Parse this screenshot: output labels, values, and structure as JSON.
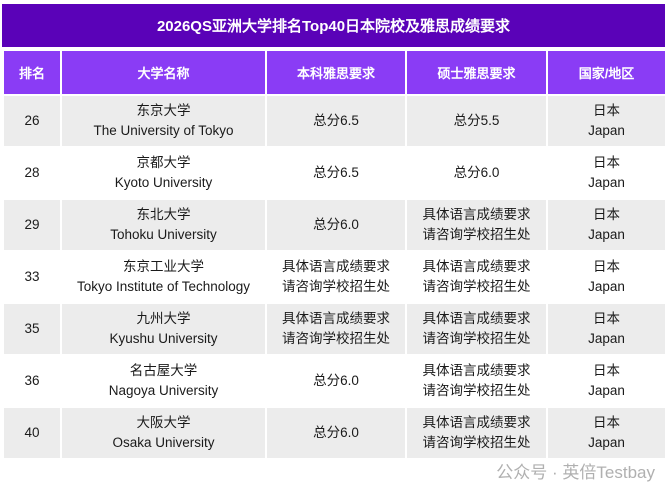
{
  "title": "2026QS亚洲大学排名Top40日本院校及雅思成绩要求",
  "headers": [
    "排名",
    "大学名称",
    "本科雅思要求",
    "硕士雅思要求",
    "国家/地区"
  ],
  "rows": [
    {
      "rank": "26",
      "name_cn": "东京大学",
      "name_en": "The University of Tokyo",
      "ug": "总分6.5",
      "pg": "总分5.5",
      "country_cn": "日本",
      "country_en": "Japan"
    },
    {
      "rank": "28",
      "name_cn": "京都大学",
      "name_en": "Kyoto University",
      "ug": "总分6.5",
      "pg": "总分6.0",
      "country_cn": "日本",
      "country_en": "Japan"
    },
    {
      "rank": "29",
      "name_cn": "东北大学",
      "name_en": "Tohoku University",
      "ug": "总分6.0",
      "pg": "具体语言成绩要求\n请咨询学校招生处",
      "country_cn": "日本",
      "country_en": "Japan"
    },
    {
      "rank": "33",
      "name_cn": "东京工业大学",
      "name_en": "Tokyo Institute of Technology",
      "ug": "具体语言成绩要求\n请咨询学校招生处",
      "pg": "具体语言成绩要求\n请咨询学校招生处",
      "country_cn": "日本",
      "country_en": "Japan"
    },
    {
      "rank": "35",
      "name_cn": "九州大学",
      "name_en": "Kyushu University",
      "ug": "具体语言成绩要求\n请咨询学校招生处",
      "pg": "具体语言成绩要求\n请咨询学校招生处",
      "country_cn": "日本",
      "country_en": "Japan"
    },
    {
      "rank": "36",
      "name_cn": "名古屋大学",
      "name_en": "Nagoya University",
      "ug": "总分6.0",
      "pg": "具体语言成绩要求\n请咨询学校招生处",
      "country_cn": "日本",
      "country_en": "Japan"
    },
    {
      "rank": "40",
      "name_cn": "大阪大学",
      "name_en": "Osaka University",
      "ug": "总分6.0",
      "pg": "具体语言成绩要求\n请咨询学校招生处",
      "country_cn": "日本",
      "country_en": "Japan"
    }
  ],
  "watermark": "公众号 · 英倍Testbay",
  "colors": {
    "title_bg": "#5a02b8",
    "header_bg": "#8a3cf5",
    "row_alt": "#ececec"
  }
}
